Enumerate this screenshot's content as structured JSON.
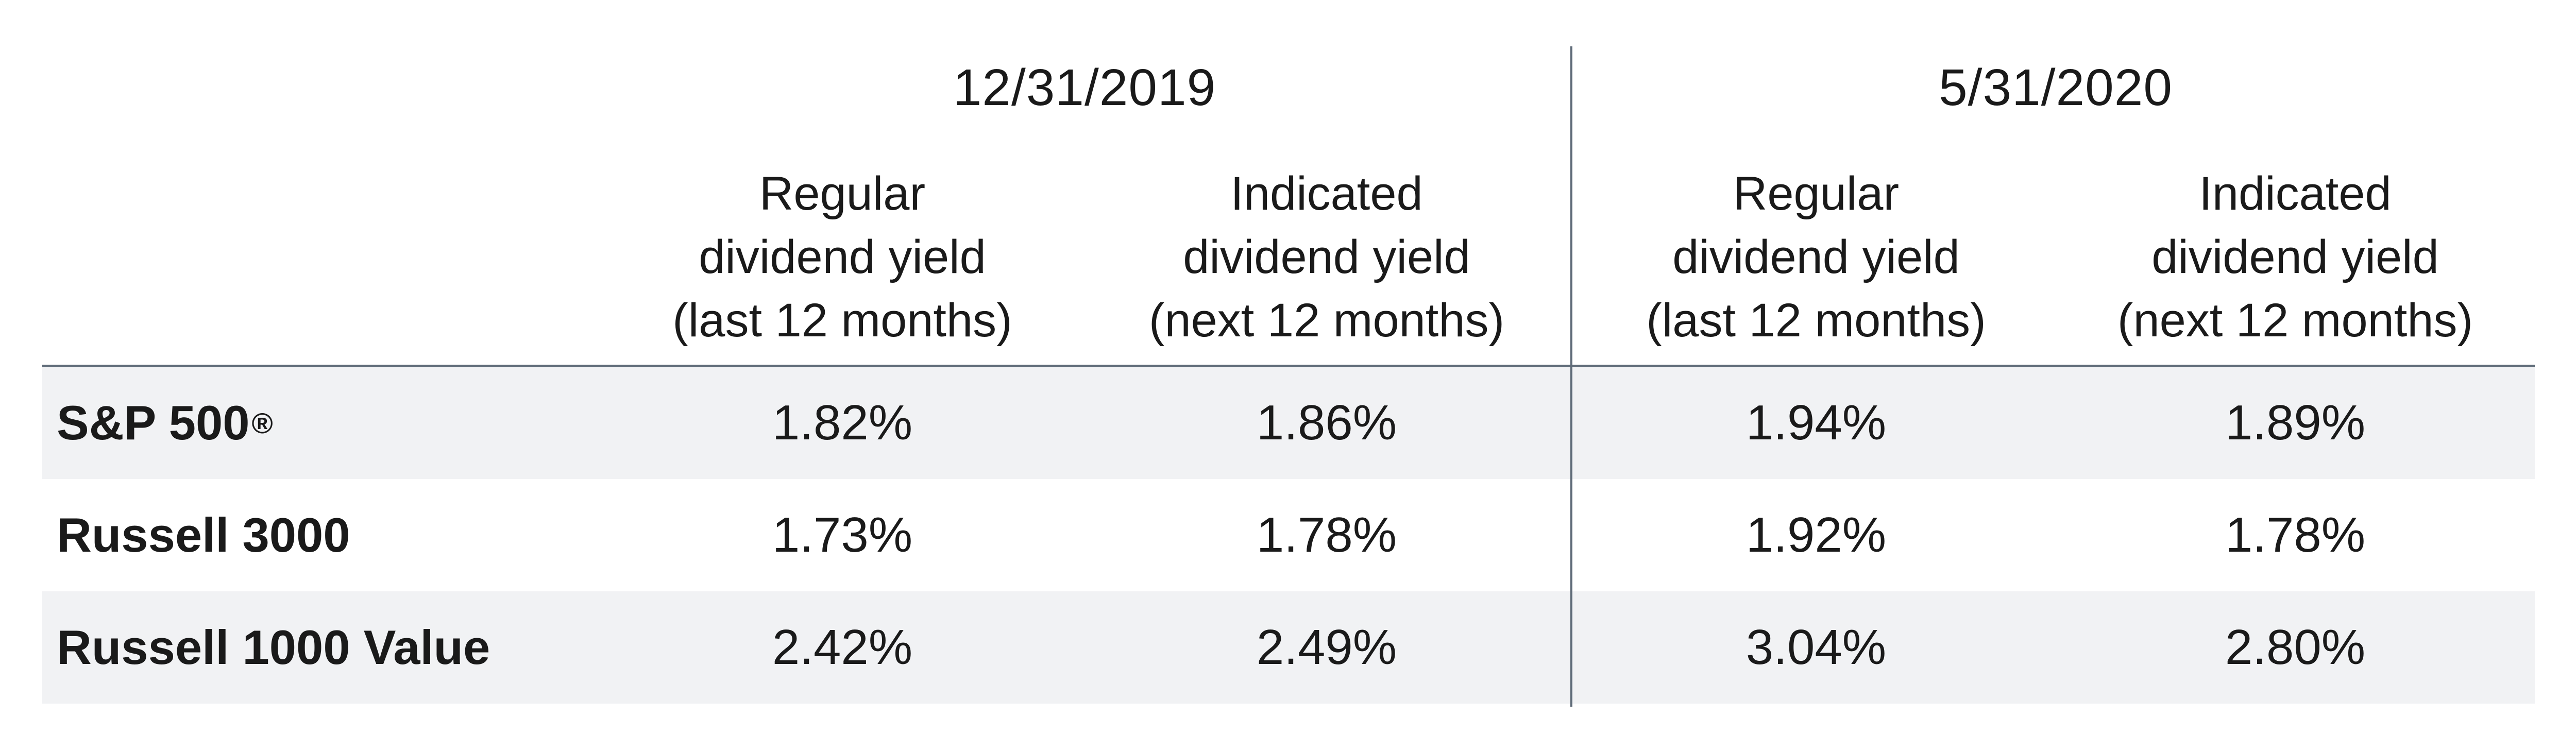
{
  "chart_data": {
    "type": "table",
    "column_groups": [
      {
        "label": "12/31/2019"
      },
      {
        "label": "5/31/2020"
      }
    ],
    "columns": [
      {
        "line1": "Regular",
        "line2": "dividend yield",
        "line3": "(last 12 months)"
      },
      {
        "line1": "Indicated",
        "line2": "dividend yield",
        "line3": "(next 12 months)"
      },
      {
        "line1": "Regular",
        "line2": "dividend yield",
        "line3": "(last 12 months)"
      },
      {
        "line1": "Indicated",
        "line2": "dividend yield",
        "line3": "(next 12 months)"
      }
    ],
    "rows": [
      {
        "label": "S&P 500",
        "label_mark": "®",
        "values": [
          "1.82%",
          "1.86%",
          "1.94%",
          "1.89%"
        ]
      },
      {
        "label": "Russell 3000",
        "label_mark": "",
        "values": [
          "1.73%",
          "1.78%",
          "1.92%",
          "1.78%"
        ]
      },
      {
        "label": "Russell 1000 Value",
        "label_mark": "",
        "values": [
          "2.42%",
          "2.49%",
          "3.04%",
          "2.80%"
        ]
      }
    ],
    "row_band_color": "#f1f2f4",
    "rule_color": "#5f6b78"
  }
}
